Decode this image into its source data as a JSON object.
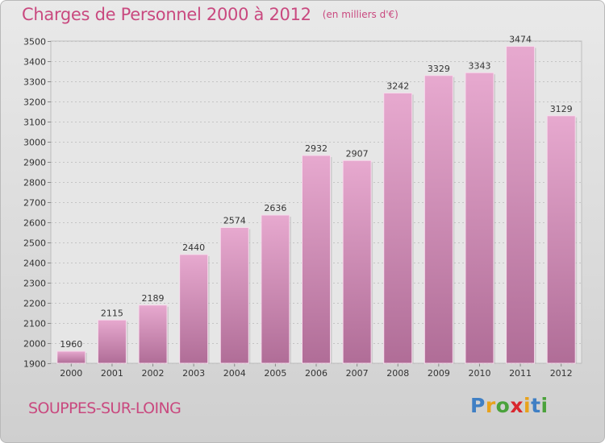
{
  "title": "Charges de Personnel 2000 à 2012",
  "subtitle": "(en milliers d'€)",
  "city": "SOUPPES-SUR-LOING",
  "logo": "Proxiti",
  "colors": {
    "title": "#c9497f",
    "bar_top": "#e7a9cf",
    "bar_bottom": "#b06d97",
    "logo_letters": [
      "#3f7fc4",
      "#e8a21c",
      "#4aa23b",
      "#d9272e",
      "#e8a21c",
      "#3f7fc4",
      "#4aa23b"
    ]
  },
  "chart_data": {
    "type": "bar",
    "categories": [
      "2000",
      "2001",
      "2002",
      "2003",
      "2004",
      "2005",
      "2006",
      "2007",
      "2008",
      "2009",
      "2010",
      "2011",
      "2012"
    ],
    "values": [
      1960,
      2115,
      2189,
      2440,
      2574,
      2636,
      2932,
      2907,
      3242,
      3329,
      3343,
      3474,
      3129
    ],
    "ylim": [
      1900,
      3500
    ],
    "yticks": [
      1900,
      2000,
      2100,
      2200,
      2300,
      2400,
      2500,
      2600,
      2700,
      2800,
      2900,
      3000,
      3100,
      3200,
      3300,
      3400,
      3500
    ],
    "grid": true,
    "xlabel": "",
    "ylabel": ""
  }
}
